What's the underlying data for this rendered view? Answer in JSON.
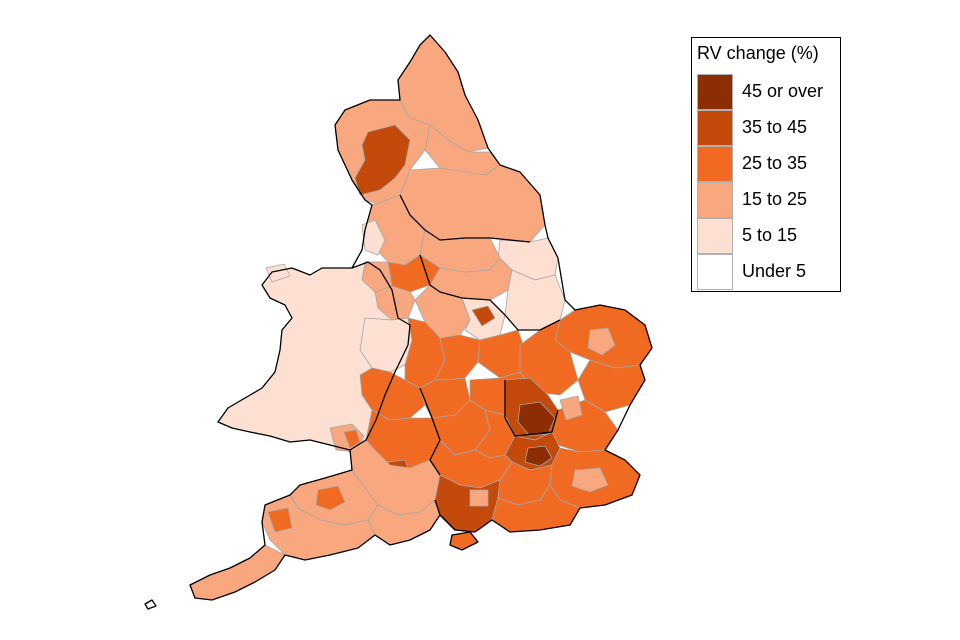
{
  "legend": {
    "title": "RV change (%)",
    "items": [
      {
        "label": "45 or over",
        "color": "#8c2d04"
      },
      {
        "label": "35 to 45",
        "color": "#c44a0c"
      },
      {
        "label": "25 to 35",
        "color": "#f16a22"
      },
      {
        "label": "15 to 25",
        "color": "#f9a77e"
      },
      {
        "label": "5 to 15",
        "color": "#fde0d2"
      },
      {
        "label": "Under 5",
        "color": "#ffffff"
      }
    ]
  },
  "map": {
    "subject": "England and Wales local authority areas shaded by RV change (%)",
    "colors": {
      "outline": "#000000",
      "boundary": "#a6a6a6"
    }
  }
}
